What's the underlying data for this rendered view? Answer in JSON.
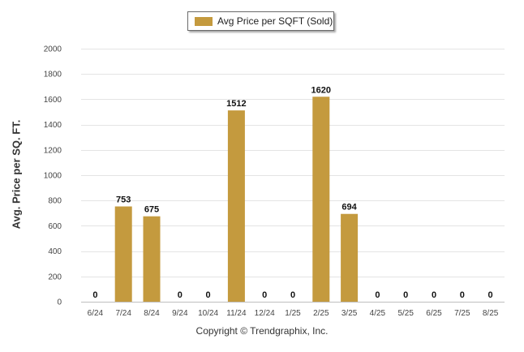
{
  "chart_data": {
    "type": "bar",
    "categories": [
      "6/24",
      "7/24",
      "8/24",
      "9/24",
      "10/24",
      "11/24",
      "12/24",
      "1/25",
      "2/25",
      "3/25",
      "4/25",
      "5/25",
      "6/25",
      "7/25",
      "8/25"
    ],
    "series": [
      {
        "name": "Avg Price per SQFT (Sold)",
        "values": [
          0,
          753,
          675,
          0,
          0,
          1512,
          0,
          0,
          1620,
          694,
          0,
          0,
          0,
          0,
          0
        ],
        "color": "#c49a3e"
      }
    ],
    "ylabel": "Avg. Price per SQ. FT.",
    "xlabel": "",
    "ylim": [
      0,
      2000
    ],
    "yticks": [
      0,
      200,
      400,
      600,
      800,
      1000,
      1200,
      1400,
      1600,
      1800,
      2000
    ],
    "grid": true,
    "legend": "top-center",
    "data_labels": true
  },
  "footer": {
    "copyright": "Copyright © Trendgraphix, Inc."
  }
}
